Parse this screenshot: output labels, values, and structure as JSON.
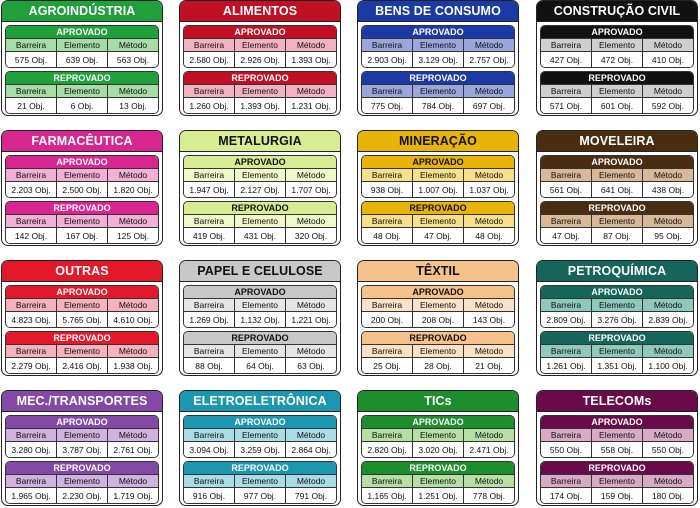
{
  "columns": [
    "Barreira",
    "Elemento",
    "Método"
  ],
  "status_labels": {
    "approved": "APROVADO",
    "rejected": "REPROVADO"
  },
  "cards": [
    {
      "title": "AGROINDÚSTRIA",
      "head": "#1fa03a",
      "sub": "#a6dca6",
      "dark": false,
      "approved": [
        "575 Obj.",
        "639 Obj.",
        "563 Obj."
      ],
      "rejected": [
        "21 Obj.",
        "6 Obj.",
        "13 Obj."
      ]
    },
    {
      "title": "ALIMENTOS",
      "head": "#c10f24",
      "sub": "#f2b2c2",
      "dark": false,
      "approved": [
        "2.580 Obj.",
        "2.926 Obj.",
        "1.393 Obj."
      ],
      "rejected": [
        "1.260 Obj.",
        "1.393 Obj.",
        "1.231 Obj."
      ]
    },
    {
      "title": "BENS DE CONSUMO",
      "head": "#1c3aa6",
      "sub": "#9aa6dc",
      "dark": false,
      "approved": [
        "2.903 Obj.",
        "3.129 Obj.",
        "2.757 Obj."
      ],
      "rejected": [
        "775 Obj.",
        "784 Obj.",
        "697 Obj."
      ]
    },
    {
      "title": "CONSTRUÇÃO CIVIL",
      "head": "#111111",
      "sub": "#cfcfcf",
      "dark": false,
      "approved": [
        "427 Obj.",
        "472 Obj.",
        "410 Obj."
      ],
      "rejected": [
        "571 Obj.",
        "601 Obj.",
        "592 Obj."
      ]
    },
    {
      "title": "FARMACÊUTICA",
      "head": "#d8258f",
      "sub": "#f3b0d6",
      "dark": false,
      "approved": [
        "2.203 Obj.",
        "2.500 Obj.",
        "1.820 Obj."
      ],
      "rejected": [
        "142 Obj.",
        "167 Obj.",
        "125 Obj."
      ]
    },
    {
      "title": "METALURGIA",
      "head": "#d8ec94",
      "sub": "#eef8c8",
      "dark": true,
      "approved": [
        "1.947 Obj.",
        "2.127 Obj.",
        "1.707 Obj."
      ],
      "rejected": [
        "419 Obj.",
        "431 Obj.",
        "320 Obj."
      ]
    },
    {
      "title": "MINERAÇÃO",
      "head": "#e9b408",
      "sub": "#f8e08a",
      "dark": true,
      "approved": [
        "938 Obj.",
        "1.007 Obj.",
        "1.037 Obj."
      ],
      "rejected": [
        "48 Obj.",
        "47 Obj.",
        "48 Obj."
      ]
    },
    {
      "title": "MOVELEIRA",
      "head": "#4a2c10",
      "sub": "#d8b896",
      "dark": false,
      "approved": [
        "561 Obj.",
        "641 Obj.",
        "438 Obj."
      ],
      "rejected": [
        "47 Obj.",
        "87 Obj.",
        "95 Obj."
      ]
    },
    {
      "title": "OUTRAS",
      "head": "#e3182a",
      "sub": "#f5b2ba",
      "dark": false,
      "approved": [
        "4.823 Obj.",
        "5.765 Obj.",
        "4.610 Obj."
      ],
      "rejected": [
        "2.279 Obj.",
        "2.416 Obj.",
        "1.938 Obj."
      ]
    },
    {
      "title": "PAPEL E CELULOSE",
      "head": "#c8c8c8",
      "sub": "#e6e6e6",
      "dark": true,
      "approved": [
        "1.269 Obj.",
        "1.132 Obj.",
        "1.221 Obj."
      ],
      "rejected": [
        "88 Obj.",
        "64 Obj.",
        "63 Obj."
      ]
    },
    {
      "title": "TÊXTIL",
      "head": "#f5c28c",
      "sub": "#fbe2c6",
      "dark": true,
      "approved": [
        "200 Obj.",
        "208 Obj.",
        "143 Obj."
      ],
      "rejected": [
        "25 Obj.",
        "28 Obj.",
        "21 Obj."
      ]
    },
    {
      "title": "PETROQUÍMICA",
      "head": "#15655a",
      "sub": "#8ec9bd",
      "dark": false,
      "approved": [
        "2.809 Obj.",
        "3.276 Obj.",
        "2.839 Obj."
      ],
      "rejected": [
        "1.261 Obj.",
        "1.351 Obj.",
        "1.100 Obj."
      ]
    },
    {
      "title": "MEC./TRANSPORTES",
      "head": "#8448a6",
      "sub": "#cfb2e0",
      "dark": false,
      "approved": [
        "3.280 Obj.",
        "3.787 Obj.",
        "2.761 Obj."
      ],
      "rejected": [
        "1.965 Obj.",
        "2.230 Obj.",
        "1.719 Obj."
      ]
    },
    {
      "title": "ELETROELETRÔNICA",
      "head": "#1c97b0",
      "sub": "#a8dce6",
      "dark": false,
      "approved": [
        "3.094 Obj.",
        "3.259 Obj.",
        "2.864 Obj."
      ],
      "rejected": [
        "916 Obj.",
        "977 Obj.",
        "791 Obj."
      ]
    },
    {
      "title": "TICs",
      "head": "#1c8e2c",
      "sub": "#b4e0a4",
      "dark": false,
      "approved": [
        "2.820 Obj.",
        "3.020 Obj.",
        "2.471 Obj."
      ],
      "rejected": [
        "1.165 Obj.",
        "1.251 Obj.",
        "778 Obj."
      ]
    },
    {
      "title": "TELECOMs",
      "head": "#6a0a4a",
      "sub": "#d8aac6",
      "dark": false,
      "approved": [
        "550 Obj.",
        "558 Obj.",
        "550 Obj."
      ],
      "rejected": [
        "174 Obj.",
        "159 Obj.",
        "180 Obj."
      ]
    }
  ]
}
